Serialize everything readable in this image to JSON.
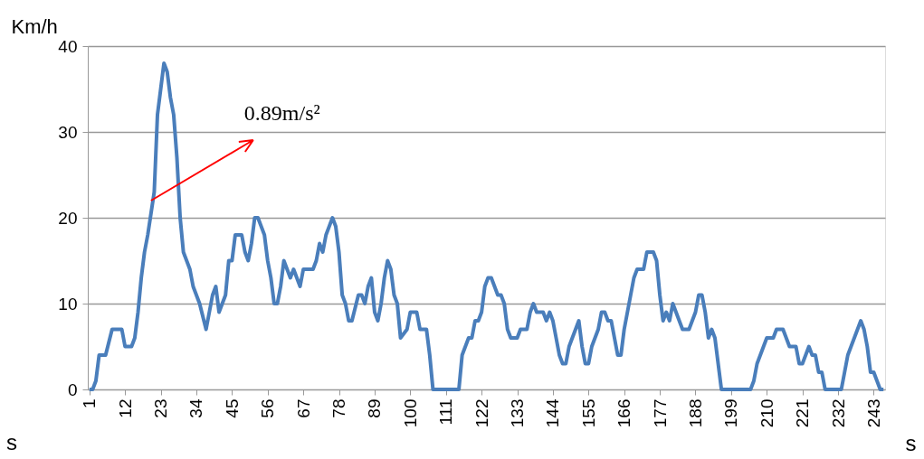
{
  "chart_data": {
    "type": "line",
    "ylabel": "Km/h",
    "xlabel": "s",
    "annotations": [
      {
        "text": "0.89m/s²",
        "x": 20,
        "y": 22
      },
      "s"
    ],
    "x": [
      1,
      2,
      3,
      4,
      6,
      8,
      11,
      12,
      14,
      15,
      16,
      17,
      18,
      19,
      21,
      22,
      24,
      25,
      26,
      27,
      28,
      29,
      30,
      32,
      33,
      35,
      37,
      39,
      40,
      41,
      43,
      44,
      45,
      46,
      48,
      49,
      50,
      51,
      52,
      53,
      55,
      56,
      57,
      58,
      59,
      60,
      61,
      62,
      63,
      64,
      66,
      67,
      70,
      71,
      72,
      73,
      74,
      76,
      77,
      78,
      79,
      80,
      81,
      82,
      84,
      85,
      86,
      87,
      88,
      89,
      90,
      91,
      92,
      93,
      94,
      95,
      96,
      97,
      99,
      100,
      102,
      103,
      105,
      106,
      107,
      115,
      116,
      118,
      119,
      120,
      121,
      122,
      123,
      124,
      125,
      126,
      127,
      128,
      129,
      130,
      131,
      133,
      134,
      136,
      137,
      138,
      139,
      141,
      142,
      143,
      144,
      145,
      146,
      147,
      148,
      149,
      151,
      152,
      153,
      154,
      155,
      156,
      158,
      159,
      160,
      161,
      162,
      163,
      164,
      165,
      166,
      168,
      169,
      170,
      172,
      173,
      175,
      176,
      177,
      178,
      179,
      180,
      181,
      182,
      183,
      184,
      186,
      187,
      188,
      189,
      190,
      191,
      192,
      193,
      194,
      196,
      205,
      206,
      207,
      209,
      210,
      212,
      213,
      215,
      217,
      219,
      220,
      221,
      223,
      224,
      225,
      226,
      227,
      228,
      233,
      234,
      235,
      239,
      240,
      241,
      242,
      243,
      244,
      245,
      246
    ],
    "series": [
      {
        "color": "#4a7ebb",
        "values": [
          0,
          0,
          1,
          4,
          4,
          7,
          7,
          5,
          5,
          6,
          9,
          13,
          16,
          18,
          23,
          32,
          38,
          37,
          34,
          32,
          27,
          20,
          16,
          14,
          12,
          10,
          7,
          11,
          12,
          9,
          11,
          15,
          15,
          18,
          18,
          16,
          15,
          17,
          20,
          20,
          18,
          15,
          13,
          10,
          10,
          12,
          15,
          14,
          13,
          14,
          12,
          14,
          14,
          15,
          17,
          16,
          18,
          20,
          19,
          16,
          11,
          10,
          8,
          8,
          11,
          11,
          10,
          12,
          13,
          9,
          8,
          10,
          13,
          15,
          14,
          11,
          10,
          6,
          7,
          9,
          9,
          7,
          7,
          4,
          0,
          0,
          4,
          6,
          6,
          8,
          8,
          9,
          12,
          13,
          13,
          12,
          11,
          11,
          10,
          7,
          6,
          6,
          7,
          7,
          9,
          10,
          9,
          9,
          8,
          9,
          8,
          6,
          4,
          3,
          3,
          5,
          7,
          8,
          5,
          3,
          3,
          5,
          7,
          9,
          9,
          8,
          8,
          6,
          4,
          4,
          7,
          11,
          13,
          14,
          14,
          16,
          16,
          15,
          11,
          8,
          9,
          8,
          10,
          9,
          8,
          7,
          7,
          8,
          9,
          11,
          11,
          9,
          6,
          7,
          6,
          0,
          0,
          1,
          3,
          5,
          6,
          6,
          7,
          7,
          5,
          5,
          3,
          3,
          5,
          4,
          4,
          2,
          2,
          0,
          0,
          2,
          4,
          8,
          7,
          5,
          2,
          2,
          1,
          0,
          0
        ]
      }
    ],
    "xlim": [
      0.5,
      246.5
    ],
    "xticks": [
      1,
      12,
      23,
      34,
      45,
      56,
      67,
      78,
      89,
      100,
      111,
      122,
      133,
      144,
      155,
      166,
      177,
      188,
      199,
      210,
      221,
      232,
      243
    ],
    "ylim": [
      0,
      40
    ],
    "yticks": [
      0,
      10,
      20,
      30,
      40
    ],
    "grid": "y",
    "marker": "none",
    "line_style": "solid"
  }
}
